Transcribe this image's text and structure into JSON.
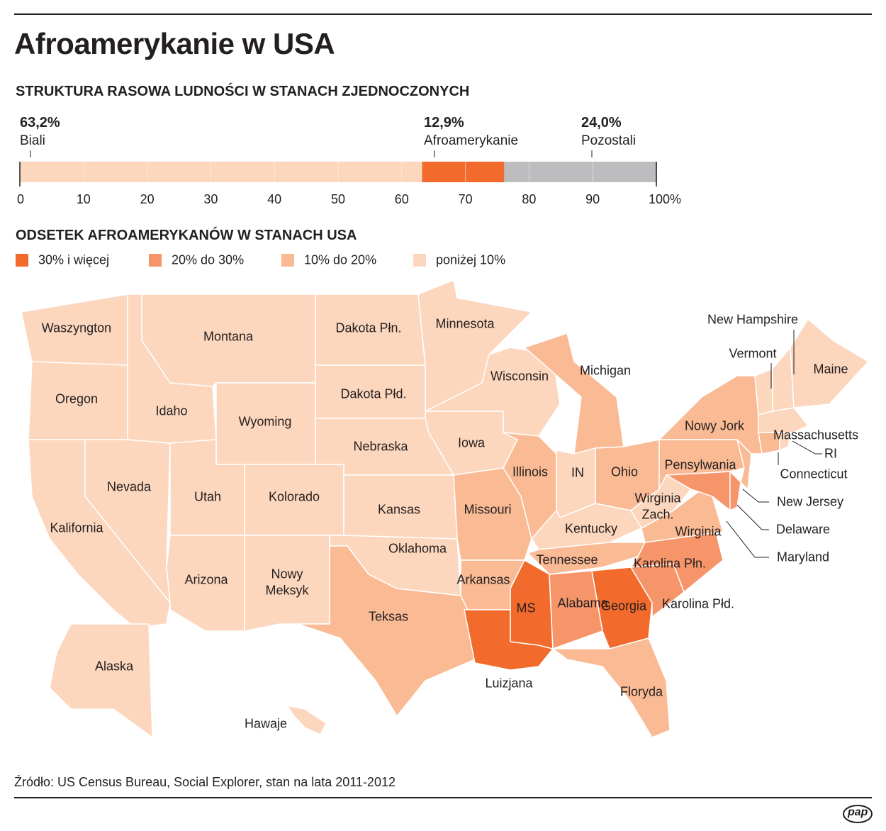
{
  "title": "Afroamerykanie w USA",
  "source": "Źródło: US Census Bureau, Social Explorer, stan na lata 2011-2012",
  "logo": "pap",
  "chart_data": {
    "type": "stacked_bar",
    "title": "STRUKTURA RASOWA LUDNOŚCI W STANACH ZJEDNOCZONYCH",
    "series": [
      {
        "name": "Biali",
        "color": "#fcd6bd",
        "values": [
          63.2
        ],
        "value_labels": [
          "63,2%"
        ]
      },
      {
        "name": "Afroamerykanie",
        "color": "#f26a2c",
        "values": [
          12.9
        ],
        "value_labels": [
          "12,9%"
        ]
      },
      {
        "name": "Pozostali",
        "color": "#bdbdbf",
        "values": [
          24.0
        ],
        "value_labels": [
          "24,0%"
        ]
      }
    ],
    "xlim": [
      0,
      100
    ],
    "xticks": [
      0,
      10,
      20,
      30,
      40,
      50,
      60,
      70,
      80,
      90,
      {
        "value": 100,
        "label": "100%"
      }
    ]
  },
  "map": {
    "title": "ODSETEK AFROAMERYKANÓW W STANACH USA",
    "legend": [
      {
        "label": "30% i więcej",
        "color": "#f26a2c"
      },
      {
        "label": "20% do 30%",
        "color": "#f6956a"
      },
      {
        "label": "10% do 20%",
        "color": "#f9ba94"
      },
      {
        "label": "poniżej 10%",
        "color": "#fcd6bd"
      }
    ],
    "states": [
      {
        "label": "Waszyngton",
        "color": "#fcd6bd"
      },
      {
        "label": "Oregon",
        "color": "#fcd6bd"
      },
      {
        "label": "Kalifornia",
        "color": "#fcd6bd"
      },
      {
        "label": "Nevada",
        "color": "#fcd6bd"
      },
      {
        "label": "Idaho",
        "color": "#fcd6bd"
      },
      {
        "label": "Montana",
        "color": "#fcd6bd"
      },
      {
        "label": "Wyoming",
        "color": "#fcd6bd"
      },
      {
        "label": "Utah",
        "color": "#fcd6bd"
      },
      {
        "label": "Kolorado",
        "color": "#fcd6bd"
      },
      {
        "label": "Arizona",
        "color": "#fcd6bd"
      },
      {
        "label": "Nowy Meksyk",
        "color": "#fcd6bd"
      },
      {
        "label": "Dakota Płn.",
        "color": "#fcd6bd"
      },
      {
        "label": "Dakota Płd.",
        "color": "#fcd6bd"
      },
      {
        "label": "Nebraska",
        "color": "#fcd6bd"
      },
      {
        "label": "Kansas",
        "color": "#fcd6bd"
      },
      {
        "label": "Oklahoma",
        "color": "#fcd6bd"
      },
      {
        "label": "Teksas",
        "color": "#f9ba94"
      },
      {
        "label": "Minnesota",
        "color": "#fcd6bd"
      },
      {
        "label": "Iowa",
        "color": "#fcd6bd"
      },
      {
        "label": "Missouri",
        "color": "#f9ba94"
      },
      {
        "label": "Arkansas",
        "color": "#f9ba94"
      },
      {
        "label": "Luizjana",
        "color": "#f26a2c"
      },
      {
        "label": "MS",
        "color": "#f26a2c"
      },
      {
        "label": "Wisconsin",
        "color": "#fcd6bd"
      },
      {
        "label": "Illinois",
        "color": "#f9ba94"
      },
      {
        "label": "Michigan",
        "color": "#f9ba94"
      },
      {
        "label": "IN",
        "color": "#fcd6bd"
      },
      {
        "label": "Ohio",
        "color": "#f9ba94"
      },
      {
        "label": "Kentucky",
        "color": "#fcd6bd"
      },
      {
        "label": "Tennessee",
        "color": "#f9ba94"
      },
      {
        "label": "Alabama",
        "color": "#f6956a"
      },
      {
        "label": "Georgia",
        "color": "#f26a2c"
      },
      {
        "label": "Floryda",
        "color": "#f9ba94"
      },
      {
        "label": "Karolina Płd.",
        "color": "#f6956a"
      },
      {
        "label": "Karolina Płn.",
        "color": "#f6956a"
      },
      {
        "label": "Wirginia",
        "color": "#f9ba94"
      },
      {
        "label": "Wirginia Zach.",
        "color": "#fcd6bd"
      },
      {
        "label": "Maryland",
        "color": "#f6956a"
      },
      {
        "label": "Delaware",
        "color": "#f6956a"
      },
      {
        "label": "Pensylwania",
        "color": "#f9ba94"
      },
      {
        "label": "New Jersey",
        "color": "#f9ba94"
      },
      {
        "label": "Nowy Jork",
        "color": "#f9ba94"
      },
      {
        "label": "Vermont",
        "color": "#fcd6bd"
      },
      {
        "label": "New Hampshire",
        "color": "#fcd6bd"
      },
      {
        "label": "Maine",
        "color": "#fcd6bd"
      },
      {
        "label": "Massachusetts",
        "color": "#fcd6bd"
      },
      {
        "label": "Connecticut",
        "color": "#f9ba94"
      },
      {
        "label": "RI",
        "color": "#fcd6bd"
      },
      {
        "label": "Alaska",
        "color": "#fcd6bd"
      },
      {
        "label": "Hawaje",
        "color": "#fcd6bd"
      }
    ]
  }
}
